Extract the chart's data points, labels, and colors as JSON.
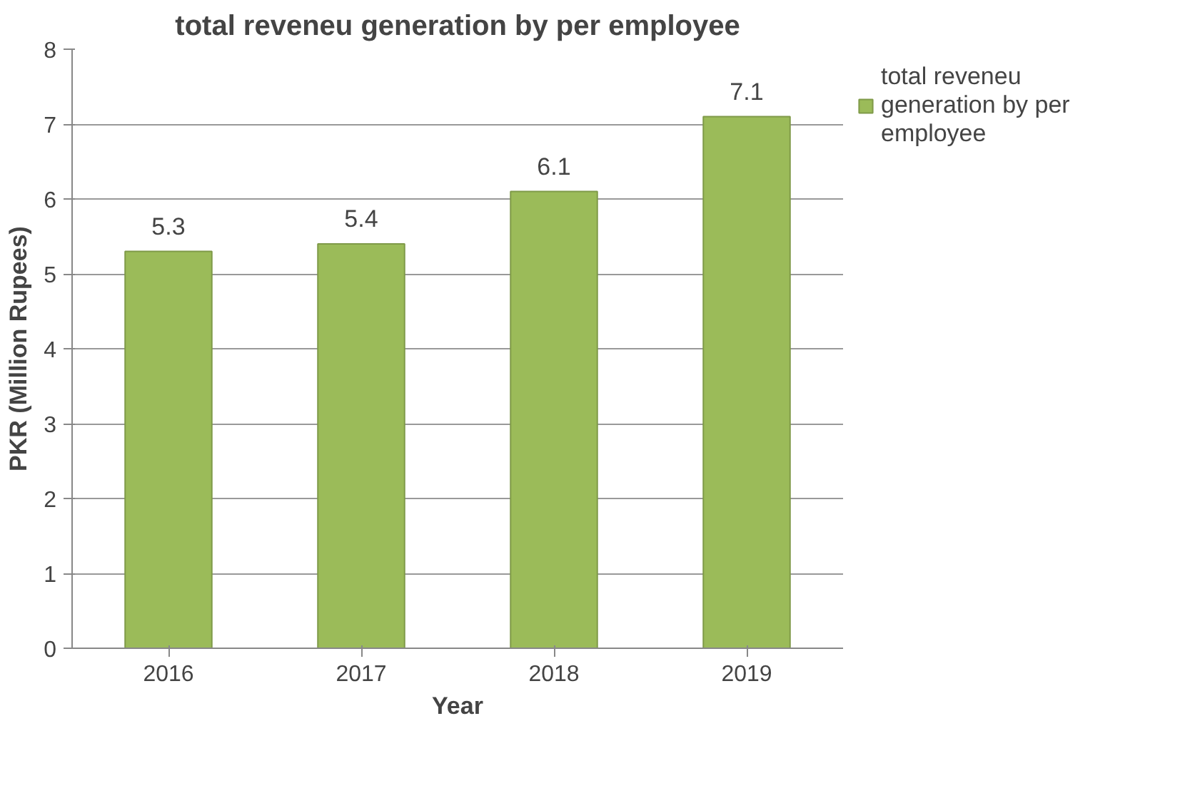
{
  "chart_data": {
    "type": "bar",
    "title": "total reveneu generation by per employee",
    "xlabel": "Year",
    "ylabel": "PKR (Million Rupees)",
    "categories": [
      "2016",
      "2017",
      "2018",
      "2019"
    ],
    "series": [
      {
        "name": "total reveneu generation by per employee",
        "color": "#9bbb59",
        "values": [
          5.3,
          5.4,
          6.1,
          7.1
        ]
      }
    ],
    "ylim": [
      0,
      8
    ],
    "yticks": [
      0,
      1,
      2,
      3,
      4,
      5,
      6,
      7,
      8
    ],
    "grid": "y",
    "legend": "right",
    "data_labels": true
  }
}
